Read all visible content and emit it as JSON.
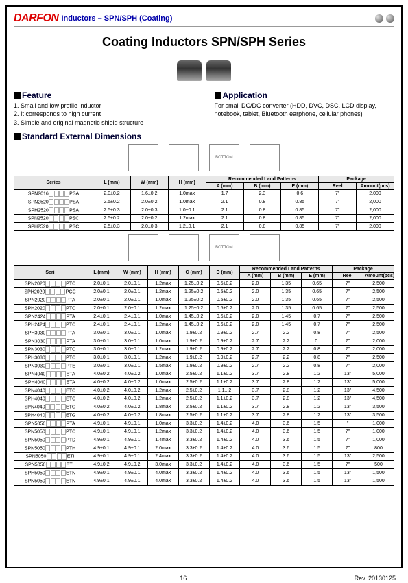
{
  "header": {
    "logo": "DARFON",
    "subtitle": "Inductors – SPN/SPH (Coating)"
  },
  "title": "Coating Inductors SPN/SPH Series",
  "feature": {
    "heading": "Feature",
    "items": [
      "1. Small and low profile inductor",
      "2. It corresponds to high current",
      "3. Simple and original magnetic shield structure"
    ]
  },
  "application": {
    "heading": "Application",
    "text": "For small DC/DC converter (HDD, DVC, DSC, LCD display, notebook, tablet, Bluetooth earphone, cellular phones)"
  },
  "dimensions_heading": "Standard External Dimensions",
  "table1": {
    "head": {
      "series": "Series",
      "L": "L (mm)",
      "W": "W (mm)",
      "H": "H (mm)",
      "rlp": "Recommended Land Patterns",
      "A": "A (mm)",
      "B": "B (mm)",
      "E": "E (mm)",
      "pkg": "Package",
      "reel": "Reel",
      "amt": "Amount(pcs)"
    },
    "rows": [
      {
        "s": "SPN2016",
        "suf": "PSA",
        "L": "2.0±0.2",
        "W": "1.6±0.2",
        "H": "1.0max",
        "A": "1.7",
        "B": "2.3",
        "E": "0.6",
        "reel": "7\"",
        "amt": "2,000"
      },
      {
        "s": "SPN2520",
        "suf": "PSA",
        "L": "2.5±0.2",
        "W": "2.0±0.2",
        "H": "1.0max",
        "A": "2.1",
        "B": "0.8",
        "E": "0.85",
        "reel": "7\"",
        "amt": "2,000"
      },
      {
        "s": "SPH2520",
        "suf": "PSA",
        "L": "2.5±0.3",
        "W": "2.0±0.3",
        "H": "1.0±0.1",
        "A": "2.1",
        "B": "0.8",
        "E": "0.85",
        "reel": "7\"",
        "amt": "2,000"
      },
      {
        "s": "SPN2520",
        "suf": "PSC",
        "L": "2.5±0.2",
        "W": "2.0±0.2",
        "H": "1.2max",
        "A": "2.1",
        "B": "0.8",
        "E": "0.85",
        "reel": "7\"",
        "amt": "2,000"
      },
      {
        "s": "SPH2520",
        "suf": "PSC",
        "L": "2.5±0.3",
        "W": "2.0±0.3",
        "H": "1.2±0.1",
        "A": "2.1",
        "B": "0.8",
        "E": "0.85",
        "reel": "7\"",
        "amt": "2,000"
      }
    ]
  },
  "table2": {
    "head": {
      "seri": "Seri",
      "L": "L (mm)",
      "W": "W (mm)",
      "H": "H (mm)",
      "C": "C (mm)",
      "D": "D (mm)",
      "rlp": "Recommended Land Patterns",
      "A": "A (mm)",
      "B": "B (mm)",
      "E": "E (mm)",
      "pkg": "Package",
      "reel": "Reel",
      "amt": "Amount(pcs)"
    },
    "rows": [
      {
        "s": "SPN2020",
        "suf": "PTC",
        "L": "2.0±0.1",
        "W": "2.0±0.1",
        "H": "1.2max",
        "C": "1.25±0.2",
        "D": "0.5±0.2",
        "A": "2.0",
        "B": "1.35",
        "E": "0.65",
        "reel": "7\"",
        "amt": "2,500"
      },
      {
        "s": "SPH2020",
        "suf": "PCC",
        "L": "2.0±0.1",
        "W": "2.0±0.1",
        "H": "1.2max",
        "C": "1.25±0.2",
        "D": "0.5±0.2",
        "A": "2.0",
        "B": "1.35",
        "E": "0.65",
        "reel": "7\"",
        "amt": "2,500"
      },
      {
        "s": "SPN2020",
        "suf": "PTA",
        "L": "2.0±0.1",
        "W": "2.0±0.1",
        "H": "1.0max",
        "C": "1.25±0.2",
        "D": "0.5±0.2",
        "A": "2.0",
        "B": "1.35",
        "E": "0.65",
        "reel": "7\"",
        "amt": "2,500"
      },
      {
        "s": "SPH2020",
        "suf": "PTC",
        "L": "2.0±0.1",
        "W": "2.0±0.1",
        "H": "1.2max",
        "C": "1.25±0.2",
        "D": "0.5±0.2",
        "A": "2.0",
        "B": "1.35",
        "E": "0.65",
        "reel": "7\"",
        "amt": "2,500"
      },
      {
        "s": "SPN2424",
        "suf": "PTA",
        "L": "2.4±0.1",
        "W": "2.4±0.1",
        "H": "1.0max",
        "C": "1.45±0.2",
        "D": "0.6±0.2",
        "A": "2.0",
        "B": "1.45",
        "E": "0.7",
        "reel": "7\"",
        "amt": "2,500"
      },
      {
        "s": "SPH2424",
        "suf": "PTC",
        "L": "2.4±0.1",
        "W": "2.4±0.1",
        "H": "1.2max",
        "C": "1.45±0.2",
        "D": "0.6±0.2",
        "A": "2.0",
        "B": "1.45",
        "E": "0.7",
        "reel": "7\"",
        "amt": "2,500"
      },
      {
        "s": "SPH3030",
        "suf": "PTA",
        "L": "3.0±0.1",
        "W": "3.0±0.1",
        "H": "1.0max",
        "C": "1.9±0.2",
        "D": "0.9±0.2",
        "A": "2.7",
        "B": "2.2",
        "E": "0.8",
        "reel": "7\"",
        "amt": "2,500"
      },
      {
        "s": "SPN3030",
        "suf": "PTA",
        "L": "3.0±0.1",
        "W": "3.0±0.1",
        "H": "1.0max",
        "C": "1.9±0.2",
        "D": "0.9±0.2",
        "A": "2.7",
        "B": "2.2",
        "E": "0.",
        "reel": "7\"",
        "amt": "2,000"
      },
      {
        "s": "SPN3030",
        "suf": "PTC",
        "L": "3.0±0.1",
        "W": "3.0±0.1",
        "H": "1.2max",
        "C": "1.9±0.2",
        "D": "0.9±0.2",
        "A": "2.7",
        "B": "2.2",
        "E": "0.8",
        "reel": "7\"",
        "amt": "2,000"
      },
      {
        "s": "SPH3030",
        "suf": "PTC",
        "L": "3.0±0.1",
        "W": "3.0±0.1",
        "H": "1.2max",
        "C": "1.9±0.2",
        "D": "0.9±0.2",
        "A": "2.7",
        "B": "2.2",
        "E": "0.8",
        "reel": "7\"",
        "amt": "2,500"
      },
      {
        "s": "SPN3030",
        "suf": "PTE",
        "L": "3.0±0.1",
        "W": "3.0±0.1",
        "H": "1.5max",
        "C": "1.9±0.2",
        "D": "0.9±0.2",
        "A": "2.7",
        "B": "2.2",
        "E": "0.8",
        "reel": "7\"",
        "amt": "2,000"
      },
      {
        "s": "SPN4040",
        "suf": "ETA",
        "L": "4.0±0.2",
        "W": "4.0±0.2",
        "H": "1.0max",
        "C": "2.5±0.2",
        "D": "1.1±0.2",
        "A": "3.7",
        "B": "2.8",
        "E": "1.2",
        "reel": "13\"",
        "amt": "5,000"
      },
      {
        "s": "SPH4040",
        "suf": "ETA",
        "L": "4.0±0.2",
        "W": "4.0±0.2",
        "H": "1.0max",
        "C": "2.5±0.2",
        "D": "1.1±0.2",
        "A": "3.7",
        "B": "2.8",
        "E": "1.2",
        "reel": "13\"",
        "amt": "5,000"
      },
      {
        "s": "SPN4040",
        "suf": "ETC",
        "L": "4.0±0.2",
        "W": "4.0±0.2",
        "H": "1.2max",
        "C": "2.5±0.2",
        "D": "1.1±.2",
        "A": "3.7",
        "B": "2.8",
        "E": "1.2",
        "reel": "13\"",
        "amt": "4,500"
      },
      {
        "s": "SPH4040",
        "suf": "ETC",
        "L": "4.0±0.2",
        "W": "4.0±0.2",
        "H": "1.2max",
        "C": "2.5±0.2",
        "D": "1.1±0.2",
        "A": "3.7",
        "B": "2.8",
        "E": "1.2",
        "reel": "13\"",
        "amt": "4,500"
      },
      {
        "s": "SPN4040",
        "suf": "ETG",
        "L": "4.0±0.2",
        "W": "4.0±0.2",
        "H": "1.8max",
        "C": "2.5±0.2",
        "D": "1.1±0.2",
        "A": "3.7",
        "B": "2.8",
        "E": "1.2",
        "reel": "13\"",
        "amt": "3,500"
      },
      {
        "s": "SPH4040",
        "suf": "ETG",
        "L": "4.0±0.2",
        "W": "4.0±0.2",
        "H": "1.8max",
        "C": "2.5±0.2",
        "D": "1.1±0.2",
        "A": "3.7",
        "B": "2.8",
        "E": "1.2",
        "reel": "13\"",
        "amt": "3,500"
      },
      {
        "s": "SPN5050",
        "suf": "PTA",
        "L": "4.9±0.1",
        "W": "4.9±0.1",
        "H": "1.0max",
        "C": "3.3±0.2",
        "D": "1.4±0.2",
        "A": "4.0",
        "B": "3.6",
        "E": "1.5",
        "reel": "\"",
        "amt": "1,000"
      },
      {
        "s": "SPN5050",
        "suf": "PTC",
        "L": "4.9±0.1",
        "W": "4.9±0.1",
        "H": "1.2max",
        "C": "3.3±0.2",
        "D": "1.4±0.2",
        "A": "4.0",
        "B": "3.6",
        "E": "1.5",
        "reel": "7\"",
        "amt": "1,000"
      },
      {
        "s": "SPN5050",
        "suf": "PTD",
        "L": "4.9±0.1",
        "W": "4.9±0.1",
        "H": "1.4max",
        "C": "3.3±0.2",
        "D": "1.4±0.2",
        "A": "4.0",
        "B": "3.6",
        "E": "1.5",
        "reel": "7\"",
        "amt": "1,000"
      },
      {
        "s": "SPN5050",
        "suf": "PTH",
        "L": "4.9±0.1",
        "W": "4.9±0.1",
        "H": "2.0max",
        "C": "3.3±0.2",
        "D": "1.4±0.2",
        "A": "4.0",
        "B": "3.6",
        "E": "1.5",
        "reel": "7\"",
        "amt": "800"
      },
      {
        "s": "SPN5050",
        "suf": "ETI",
        "L": "4.9±0.1",
        "W": "4.9±0.1",
        "H": "2.4max",
        "C": "3.3±0.2",
        "D": "1.4±0.2",
        "A": "4.0",
        "B": "3.6",
        "E": "1.5",
        "reel": "13\"",
        "amt": "2,500"
      },
      {
        "s": "SPN5050",
        "suf": "ETL",
        "L": "4.9±0.2",
        "W": "4.9±0.2",
        "H": "3.0max",
        "C": "3.3±0.2",
        "D": "1.4±0.2",
        "A": "4.0",
        "B": "3.6",
        "E": "1.5",
        "reel": "7\"",
        "amt": "500"
      },
      {
        "s": "SPH5050",
        "suf": "ETN",
        "L": "4.9±0.1",
        "W": "4.9±0.1",
        "H": "4.0max",
        "C": "3.3±0.2",
        "D": "1.4±0.2",
        "A": "4.0",
        "B": "3.6",
        "E": "1.5",
        "reel": "13\"",
        "amt": "1,500"
      },
      {
        "s": "SPN5050",
        "suf": "ETN",
        "L": "4.9±0.1",
        "W": "4.9±0.1",
        "H": "4.0max",
        "C": "3.3±0.2",
        "D": "1.4±0.2",
        "A": "4.0",
        "B": "3.6",
        "E": "1.5",
        "reel": "13\"",
        "amt": "1,500"
      }
    ]
  },
  "footer": {
    "page": "16",
    "rev": "Rev. 20130125"
  }
}
